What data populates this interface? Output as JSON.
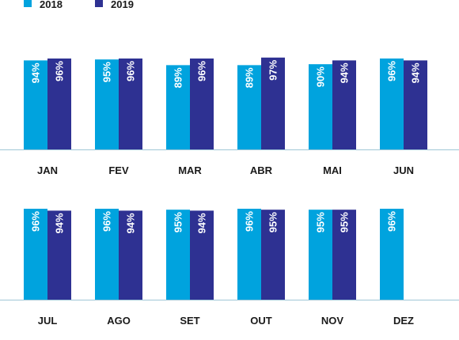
{
  "chart_data": {
    "type": "bar",
    "categories": [
      "JAN",
      "FEV",
      "MAR",
      "ABR",
      "MAI",
      "JUN",
      "JUL",
      "AGO",
      "SET",
      "OUT",
      "NOV",
      "DEZ"
    ],
    "series": [
      {
        "name": "2018",
        "color": "#00a3de",
        "values": [
          94,
          95,
          89,
          89,
          90,
          96,
          96,
          96,
          95,
          96,
          95,
          96
        ],
        "labels": [
          "94%",
          "95%",
          "89%",
          "89%",
          "90%",
          "96%",
          "96%",
          "96%",
          "95%",
          "96%",
          "95%",
          "96%"
        ]
      },
      {
        "name": "2019",
        "color": "#2e3192",
        "values": [
          96,
          96,
          96,
          97,
          94,
          94,
          94,
          94,
          94,
          95,
          95,
          null
        ],
        "labels": [
          "96%",
          "96%",
          "96%",
          "97%",
          "94%",
          "94%",
          "94%",
          "94%",
          "94%",
          "95%",
          "95%",
          ""
        ]
      }
    ],
    "title": "",
    "xlabel": "",
    "ylabel": "",
    "legend_position": "top-left",
    "baseline_color": "#9fc7d6",
    "grid": false
  }
}
